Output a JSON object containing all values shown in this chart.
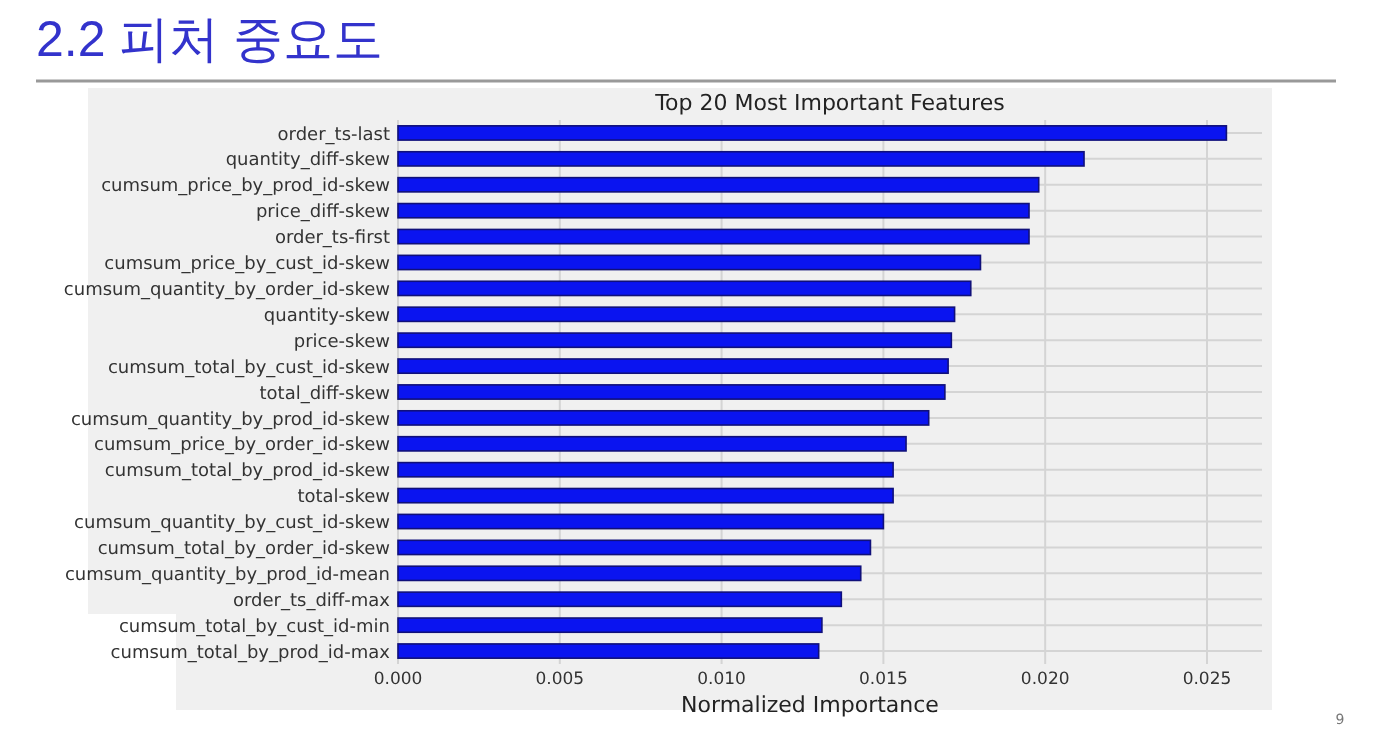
{
  "chart_data": {
    "type": "bar",
    "orientation": "horizontal",
    "title": "2.2 피처 중요도",
    "subtitle": "Top 20 Most Important Features",
    "xlabel": "Normalized Importance",
    "categories": [
      "order_ts-last",
      "quantity_diff-skew",
      "cumsum_price_by_prod_id-skew",
      "price_diff-skew",
      "order_ts-first",
      "cumsum_price_by_cust_id-skew",
      "cumsum_quantity_by_order_id-skew",
      "quantity-skew",
      "price-skew",
      "cumsum_total_by_cust_id-skew",
      "total_diff-skew",
      "cumsum_quantity_by_prod_id-skew",
      "cumsum_price_by_order_id-skew",
      "cumsum_total_by_prod_id-skew",
      "total-skew",
      "cumsum_quantity_by_cust_id-skew",
      "cumsum_total_by_order_id-skew",
      "cumsum_quantity_by_prod_id-mean",
      "order_ts_diff-max",
      "cumsum_total_by_cust_id-min",
      "cumsum_total_by_prod_id-max"
    ],
    "values": [
      0.0256,
      0.0212,
      0.0198,
      0.0195,
      0.0195,
      0.018,
      0.0177,
      0.0172,
      0.0171,
      0.017,
      0.0169,
      0.0164,
      0.0157,
      0.0153,
      0.0153,
      0.015,
      0.0146,
      0.0143,
      0.0137,
      0.0131,
      0.013
    ],
    "color": "#0a14f0",
    "xlim": [
      0,
      0.0267
    ],
    "xticks": [
      {
        "value": 0,
        "label": "0.000"
      },
      {
        "value": 0.005,
        "label": "0.005"
      },
      {
        "value": 0.01,
        "label": "0.010"
      },
      {
        "value": 0.015,
        "label": "0.015"
      },
      {
        "value": 0.02,
        "label": "0.020"
      },
      {
        "value": 0.025,
        "label": "0.025"
      }
    ],
    "grid": true,
    "annotations": [
      "9"
    ]
  }
}
